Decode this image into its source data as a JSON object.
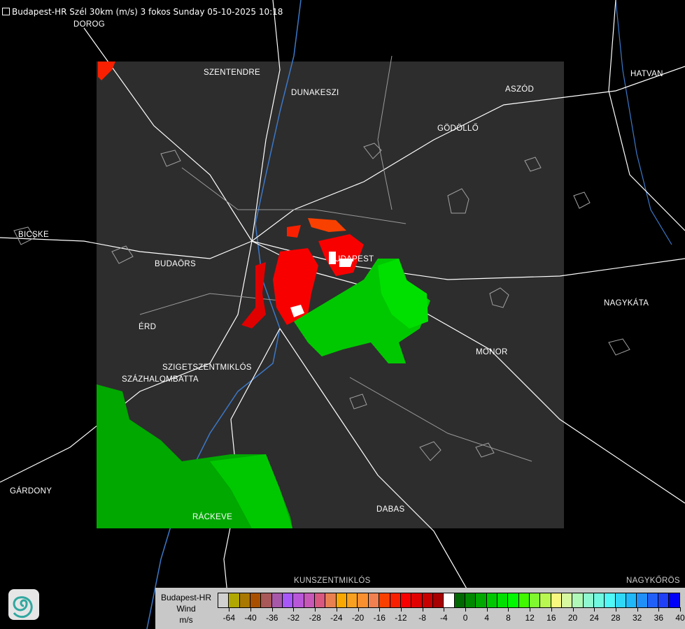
{
  "title": "Budapest-HR Szél 30km (m/s) 3 fokos Sunday 05-10-2025 10:18",
  "title_icon": "document-icon",
  "colors": {
    "background": "#000000",
    "radar_area": "#2d2d2d",
    "roads": "#ffffff",
    "settlements": "#a0a0a0",
    "rivers": "#3c78c8",
    "approaching": "#00c800",
    "receding": "#f80000"
  },
  "cities": [
    {
      "name": "DOROG"
    },
    {
      "name": "SZENTENDRE"
    },
    {
      "name": "DUNAKESZI"
    },
    {
      "name": "HATVAN"
    },
    {
      "name": "ASZÓD"
    },
    {
      "name": "GÖDÖLLŐ"
    },
    {
      "name": "BICSKE"
    },
    {
      "name": "BUDAÖRS"
    },
    {
      "name": "BUDAPEST"
    },
    {
      "name": "NAGYKÁTA"
    },
    {
      "name": "ÉRD"
    },
    {
      "name": "MONOR"
    },
    {
      "name": "SZIGETSZENTMIKLÓS"
    },
    {
      "name": "SZÁZHALOMBATTA"
    },
    {
      "name": "GÁRDONY"
    },
    {
      "name": "RÁCKEVE"
    },
    {
      "name": "DABAS"
    },
    {
      "name": "KUNSZENTMIKLÓS"
    },
    {
      "name": "NAGYKŐRÖS"
    }
  ],
  "legend": {
    "station": "Budapest-HR",
    "quantity": "Wind",
    "unit": "m/s",
    "colors": [
      "#d0d0d0",
      "#b0a800",
      "#a87800",
      "#a85000",
      "#a85858",
      "#a858a8",
      "#a858f8",
      "#b858d8",
      "#c858b8",
      "#d85880",
      "#e88050",
      "#f8a800",
      "#f8a020",
      "#f89030",
      "#f08050",
      "#f84000",
      "#f82000",
      "#f80000",
      "#e00000",
      "#c80000",
      "#a80000",
      "#ffffff",
      "#006800",
      "#008800",
      "#00a800",
      "#00c800",
      "#00e000",
      "#00f800",
      "#40f800",
      "#80f830",
      "#b8f850",
      "#f8f880",
      "#d8f8a0",
      "#b0f8b8",
      "#90f8d0",
      "#70f8e0",
      "#50f8f8",
      "#30d8f8",
      "#20b8f8",
      "#2090f8",
      "#2060f8",
      "#2040f8",
      "#0000f8"
    ],
    "ticks": [
      "-64",
      "-40",
      "-36",
      "-32",
      "-28",
      "-24",
      "-20",
      "-16",
      "-12",
      "-8",
      "-4",
      "0",
      "4",
      "8",
      "12",
      "16",
      "20",
      "24",
      "28",
      "32",
      "36",
      "40"
    ]
  },
  "logo_icon": "met-service-swirl-logo"
}
